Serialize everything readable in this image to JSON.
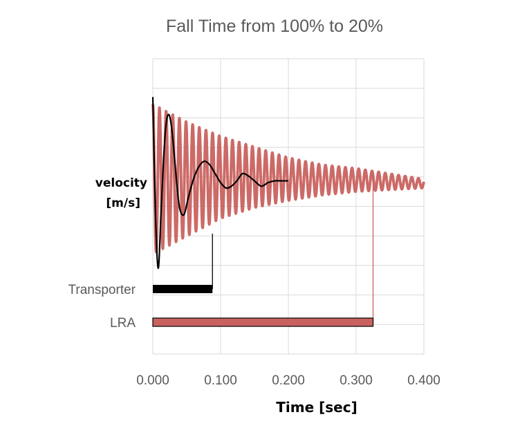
{
  "chart_data": {
    "type": "line",
    "title": "Fall Time from  100% to 20%",
    "xlabel": "Time [sec]",
    "ylabel_lines": [
      "velocity",
      "[m/s]"
    ],
    "xlim": [
      0,
      0.4
    ],
    "x_ticks": [
      "0.000",
      "0.100",
      "0.200",
      "0.300",
      "0.400"
    ],
    "grid": true,
    "series": [
      {
        "name": "LRA",
        "color": "#c9625f",
        "oscillation_period_sec": 0.0098,
        "x": [
          0.0,
          0.05,
          0.1,
          0.15,
          0.2,
          0.25,
          0.3,
          0.35,
          0.4
        ],
        "upper": [
          0.92,
          0.82,
          0.74,
          0.68,
          0.62,
          0.58,
          0.56,
          0.53,
          0.5
        ],
        "lower": [
          0.08,
          0.18,
          0.28,
          0.34,
          0.38,
          0.41,
          0.43,
          0.44,
          0.45
        ]
      },
      {
        "name": "Transporter",
        "color": "#000000",
        "x": [
          0.0,
          0.004,
          0.008,
          0.012,
          0.016,
          0.02,
          0.024,
          0.028,
          0.032,
          0.036,
          0.04,
          0.046,
          0.052,
          0.06,
          0.068,
          0.076,
          0.084,
          0.092,
          0.1,
          0.108,
          0.116,
          0.124,
          0.132,
          0.14,
          0.15,
          0.16,
          0.17,
          0.18,
          0.19,
          0.2
        ],
        "y": [
          0.96,
          0.3,
          0.0,
          0.3,
          0.62,
          0.82,
          0.86,
          0.78,
          0.62,
          0.45,
          0.33,
          0.3,
          0.39,
          0.5,
          0.57,
          0.6,
          0.58,
          0.53,
          0.48,
          0.45,
          0.46,
          0.49,
          0.53,
          0.52,
          0.49,
          0.46,
          0.48,
          0.49,
          0.49,
          0.49
        ]
      }
    ],
    "fall_time_bars": [
      {
        "label": "Transporter",
        "value": 0.088,
        "color": "#000000"
      },
      {
        "label": "LRA",
        "value": 0.325,
        "color": "#c9625f"
      }
    ]
  }
}
